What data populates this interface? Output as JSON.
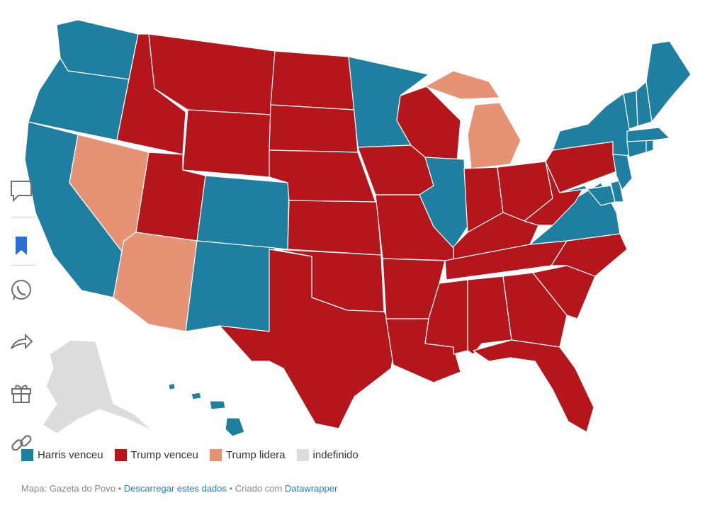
{
  "colors": {
    "harris": "#1f7fa0",
    "trump": "#b4161b",
    "trump_leads": "#e69275",
    "undetermined": "#dcdcdc",
    "link": "#1d81c4",
    "icon": "#707070",
    "bookmark": "#2b6fd6"
  },
  "legend": {
    "harris": "Harris venceu",
    "trump": "Trump venceu",
    "trump_leads": "Trump lidera",
    "undetermined": "indefinido"
  },
  "footer": {
    "source": "Mapa: Gazeta do Povo",
    "separator1": " • ",
    "download": "Descarregar estes dados",
    "separator2": " • Criado com ",
    "tool": "Datawrapper"
  },
  "sidebar_icons": [
    "comment-icon",
    "bookmark-icon",
    "whatsapp-icon",
    "share-icon",
    "gift-icon",
    "link-icon"
  ],
  "states": {
    "WA": "harris",
    "OR": "harris",
    "CA": "harris",
    "NV": "trump_leads",
    "ID": "trump",
    "MT": "trump",
    "WY": "trump",
    "UT": "trump",
    "AZ": "trump_leads",
    "CO": "harris",
    "NM": "harris",
    "ND": "trump",
    "SD": "trump",
    "NE": "trump",
    "KS": "trump",
    "OK": "trump",
    "TX": "trump",
    "MN": "harris",
    "IA": "trump",
    "MO": "trump",
    "AR": "trump",
    "LA": "trump",
    "WI": "trump",
    "IL": "harris",
    "MI": "trump_leads",
    "IN": "trump",
    "OH": "trump",
    "KY": "trump",
    "TN": "trump",
    "MS": "trump",
    "AL": "trump",
    "GA": "trump",
    "FL": "trump",
    "SC": "trump",
    "NC": "trump",
    "VA": "harris",
    "WV": "trump",
    "PA": "trump",
    "NY": "harris",
    "NJ": "harris",
    "DE": "harris",
    "MD": "harris",
    "CT": "harris",
    "RI": "harris",
    "MA": "harris",
    "VT": "harris",
    "NH": "harris",
    "ME": "harris",
    "AK": "undetermined",
    "HI": "harris"
  }
}
